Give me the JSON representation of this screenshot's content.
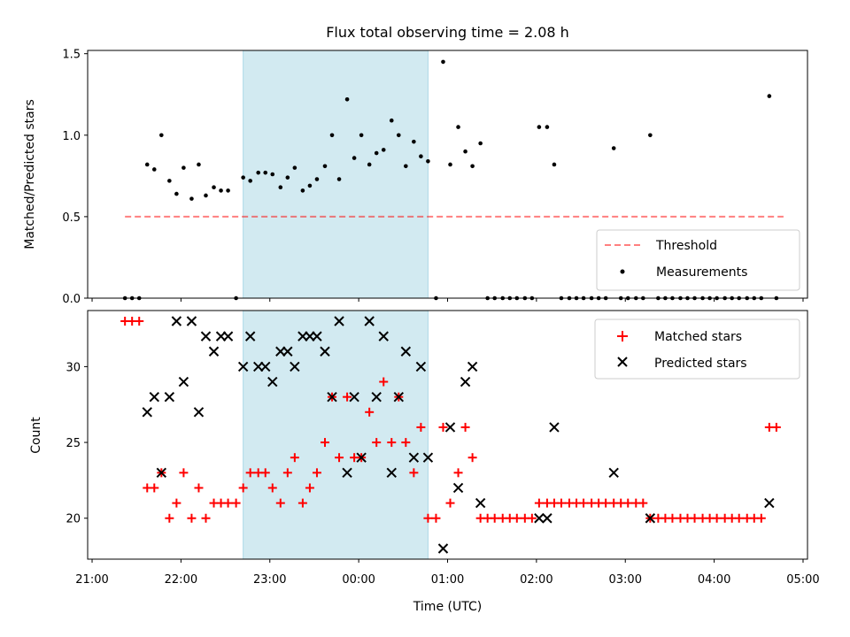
{
  "colors": {
    "span": "#add8e6",
    "threshold": "#ff0000",
    "measurement": "#000000",
    "matched": "#ff0000",
    "predicted": "#000000"
  },
  "chart_data": [
    {
      "type": "scatter",
      "title": "Flux total observing time = 2.08 h",
      "xlabel": "",
      "ylabel": "Matched/Predicted stars",
      "xlim": [
        -0.05,
        8.05
      ],
      "ylim": [
        0,
        1.52
      ],
      "x_unit": "hours after 21:00 UTC",
      "xticks": [
        0,
        1,
        2,
        3,
        4,
        5,
        6,
        7,
        8
      ],
      "xtick_labels": [
        "21:00",
        "22:00",
        "23:00",
        "00:00",
        "01:00",
        "02:00",
        "03:00",
        "04:00",
        "05:00"
      ],
      "yticks": [
        0.0,
        0.5,
        1.0,
        1.5
      ],
      "ytick_labels": [
        "0.0",
        "0.5",
        "1.0",
        "1.5"
      ],
      "shaded_span": [
        1.7,
        3.78
      ],
      "threshold": {
        "value": 0.5,
        "x_range": [
          0.37,
          7.78
        ],
        "label": "Threshold"
      },
      "legend": {
        "position": "lower right",
        "entries": [
          "Threshold",
          "Measurements"
        ]
      },
      "series": [
        {
          "name": "Measurements",
          "points": [
            [
              0.37,
              0
            ],
            [
              0.45,
              0
            ],
            [
              0.53,
              0
            ],
            [
              0.62,
              0.82
            ],
            [
              0.7,
              0.79
            ],
            [
              0.78,
              1.0
            ],
            [
              0.87,
              0.72
            ],
            [
              0.95,
              0.64
            ],
            [
              1.03,
              0.8
            ],
            [
              1.12,
              0.61
            ],
            [
              1.2,
              0.82
            ],
            [
              1.28,
              0.63
            ],
            [
              1.37,
              0.68
            ],
            [
              1.45,
              0.66
            ],
            [
              1.53,
              0.66
            ],
            [
              1.62,
              0
            ],
            [
              1.7,
              0.74
            ],
            [
              1.78,
              0.72
            ],
            [
              1.87,
              0.77
            ],
            [
              1.95,
              0.77
            ],
            [
              2.03,
              0.76
            ],
            [
              2.12,
              0.68
            ],
            [
              2.2,
              0.74
            ],
            [
              2.28,
              0.8
            ],
            [
              2.37,
              0.66
            ],
            [
              2.45,
              0.69
            ],
            [
              2.53,
              0.73
            ],
            [
              2.62,
              0.81
            ],
            [
              2.7,
              1.0
            ],
            [
              2.78,
              0.73
            ],
            [
              2.87,
              1.22
            ],
            [
              2.95,
              0.86
            ],
            [
              3.03,
              1.0
            ],
            [
              3.12,
              0.82
            ],
            [
              3.2,
              0.89
            ],
            [
              3.28,
              0.91
            ],
            [
              3.37,
              1.09
            ],
            [
              3.45,
              1.0
            ],
            [
              3.53,
              0.81
            ],
            [
              3.62,
              0.96
            ],
            [
              3.7,
              0.87
            ],
            [
              3.78,
              0.84
            ],
            [
              3.87,
              0
            ],
            [
              3.95,
              1.45
            ],
            [
              4.03,
              0.82
            ],
            [
              4.12,
              1.05
            ],
            [
              4.2,
              0.9
            ],
            [
              4.28,
              0.81
            ],
            [
              4.37,
              0.95
            ],
            [
              4.45,
              0
            ],
            [
              4.53,
              0
            ],
            [
              4.62,
              0
            ],
            [
              4.7,
              0
            ],
            [
              4.78,
              0
            ],
            [
              4.87,
              0
            ],
            [
              4.95,
              0
            ],
            [
              5.03,
              1.05
            ],
            [
              5.12,
              1.05
            ],
            [
              5.2,
              0.82
            ],
            [
              5.28,
              0
            ],
            [
              5.37,
              0
            ],
            [
              5.45,
              0
            ],
            [
              5.53,
              0
            ],
            [
              5.62,
              0
            ],
            [
              5.7,
              0
            ],
            [
              5.78,
              0
            ],
            [
              5.87,
              0.92
            ],
            [
              5.95,
              0
            ],
            [
              6.03,
              0
            ],
            [
              6.12,
              0
            ],
            [
              6.2,
              0
            ],
            [
              6.28,
              1.0
            ],
            [
              6.37,
              0
            ],
            [
              6.45,
              0
            ],
            [
              6.53,
              0
            ],
            [
              6.62,
              0
            ],
            [
              6.7,
              0
            ],
            [
              6.78,
              0
            ],
            [
              6.87,
              0
            ],
            [
              6.95,
              0
            ],
            [
              7.03,
              0
            ],
            [
              7.12,
              0
            ],
            [
              7.2,
              0
            ],
            [
              7.28,
              0
            ],
            [
              7.37,
              0
            ],
            [
              7.45,
              0
            ],
            [
              7.53,
              0
            ],
            [
              7.62,
              1.24
            ],
            [
              7.7,
              0
            ]
          ]
        }
      ]
    },
    {
      "type": "scatter",
      "title": "",
      "xlabel": "Time (UTC)",
      "ylabel": "Count",
      "xlim": [
        -0.05,
        8.05
      ],
      "ylim": [
        17.3,
        33.7
      ],
      "x_unit": "hours after 21:00 UTC",
      "xticks": [
        0,
        1,
        2,
        3,
        4,
        5,
        6,
        7,
        8
      ],
      "xtick_labels": [
        "21:00",
        "22:00",
        "23:00",
        "00:00",
        "01:00",
        "02:00",
        "03:00",
        "04:00",
        "05:00"
      ],
      "yticks": [
        20,
        25,
        30
      ],
      "ytick_labels": [
        "20",
        "25",
        "30"
      ],
      "shaded_span": [
        1.7,
        3.78
      ],
      "legend": {
        "position": "upper right",
        "entries": [
          "Matched stars",
          "Predicted stars"
        ]
      },
      "series": [
        {
          "name": "Matched stars",
          "marker": "plus",
          "points": [
            [
              0.37,
              33
            ],
            [
              0.45,
              33
            ],
            [
              0.53,
              33
            ],
            [
              0.62,
              22
            ],
            [
              0.7,
              22
            ],
            [
              0.78,
              23
            ],
            [
              0.87,
              20
            ],
            [
              0.95,
              21
            ],
            [
              1.03,
              23
            ],
            [
              1.12,
              20
            ],
            [
              1.2,
              22
            ],
            [
              1.28,
              20
            ],
            [
              1.37,
              21
            ],
            [
              1.45,
              21
            ],
            [
              1.53,
              21
            ],
            [
              1.62,
              21
            ],
            [
              1.7,
              22
            ],
            [
              1.78,
              23
            ],
            [
              1.87,
              23
            ],
            [
              1.95,
              23
            ],
            [
              2.03,
              22
            ],
            [
              2.12,
              21
            ],
            [
              2.2,
              23
            ],
            [
              2.28,
              24
            ],
            [
              2.37,
              21
            ],
            [
              2.45,
              22
            ],
            [
              2.53,
              23
            ],
            [
              2.62,
              25
            ],
            [
              2.7,
              28
            ],
            [
              2.78,
              24
            ],
            [
              2.87,
              28
            ],
            [
              2.95,
              24
            ],
            [
              3.03,
              24
            ],
            [
              3.12,
              27
            ],
            [
              3.2,
              25
            ],
            [
              3.28,
              29
            ],
            [
              3.37,
              25
            ],
            [
              3.45,
              28
            ],
            [
              3.53,
              25
            ],
            [
              3.62,
              23
            ],
            [
              3.7,
              26
            ],
            [
              3.78,
              20
            ],
            [
              3.87,
              20
            ],
            [
              3.95,
              26
            ],
            [
              4.03,
              21
            ],
            [
              4.12,
              23
            ],
            [
              4.2,
              26
            ],
            [
              4.28,
              24
            ],
            [
              4.37,
              20
            ],
            [
              4.45,
              20
            ],
            [
              4.53,
              20
            ],
            [
              4.62,
              20
            ],
            [
              4.7,
              20
            ],
            [
              4.78,
              20
            ],
            [
              4.87,
              20
            ],
            [
              4.95,
              20
            ],
            [
              5.03,
              21
            ],
            [
              5.12,
              21
            ],
            [
              5.2,
              21
            ],
            [
              5.28,
              21
            ],
            [
              5.37,
              21
            ],
            [
              5.45,
              21
            ],
            [
              5.53,
              21
            ],
            [
              5.62,
              21
            ],
            [
              5.7,
              21
            ],
            [
              5.78,
              21
            ],
            [
              5.87,
              21
            ],
            [
              5.95,
              21
            ],
            [
              6.03,
              21
            ],
            [
              6.12,
              21
            ],
            [
              6.2,
              21
            ],
            [
              6.28,
              20
            ],
            [
              6.37,
              20
            ],
            [
              6.45,
              20
            ],
            [
              6.53,
              20
            ],
            [
              6.62,
              20
            ],
            [
              6.7,
              20
            ],
            [
              6.78,
              20
            ],
            [
              6.87,
              20
            ],
            [
              6.95,
              20
            ],
            [
              7.03,
              20
            ],
            [
              7.12,
              20
            ],
            [
              7.2,
              20
            ],
            [
              7.28,
              20
            ],
            [
              7.37,
              20
            ],
            [
              7.45,
              20
            ],
            [
              7.53,
              20
            ],
            [
              7.62,
              26
            ],
            [
              7.7,
              26
            ]
          ]
        },
        {
          "name": "Predicted stars",
          "marker": "x",
          "points": [
            [
              0.62,
              27
            ],
            [
              0.7,
              28
            ],
            [
              0.78,
              23
            ],
            [
              0.87,
              28
            ],
            [
              0.95,
              33
            ],
            [
              1.03,
              29
            ],
            [
              1.12,
              33
            ],
            [
              1.2,
              27
            ],
            [
              1.28,
              32
            ],
            [
              1.37,
              31
            ],
            [
              1.45,
              32
            ],
            [
              1.53,
              32
            ],
            [
              1.7,
              30
            ],
            [
              1.78,
              32
            ],
            [
              1.87,
              30
            ],
            [
              1.95,
              30
            ],
            [
              2.03,
              29
            ],
            [
              2.12,
              31
            ],
            [
              2.2,
              31
            ],
            [
              2.28,
              30
            ],
            [
              2.37,
              32
            ],
            [
              2.45,
              32
            ],
            [
              2.53,
              32
            ],
            [
              2.62,
              31
            ],
            [
              2.7,
              28
            ],
            [
              2.78,
              33
            ],
            [
              2.87,
              23
            ],
            [
              2.95,
              28
            ],
            [
              3.03,
              24
            ],
            [
              3.12,
              33
            ],
            [
              3.2,
              28
            ],
            [
              3.28,
              32
            ],
            [
              3.37,
              23
            ],
            [
              3.45,
              28
            ],
            [
              3.53,
              31
            ],
            [
              3.62,
              24
            ],
            [
              3.7,
              30
            ],
            [
              3.78,
              24
            ],
            [
              3.95,
              18
            ],
            [
              4.03,
              26
            ],
            [
              4.12,
              22
            ],
            [
              4.2,
              29
            ],
            [
              4.28,
              30
            ],
            [
              4.37,
              21
            ],
            [
              5.03,
              20
            ],
            [
              5.12,
              20
            ],
            [
              5.2,
              26
            ],
            [
              5.87,
              23
            ],
            [
              6.28,
              20
            ],
            [
              7.62,
              21
            ]
          ]
        }
      ]
    }
  ]
}
